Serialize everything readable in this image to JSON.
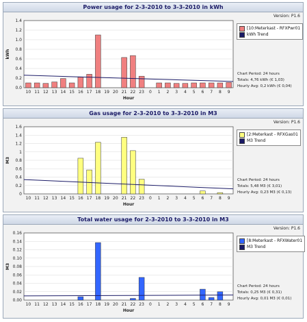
{
  "chart_data": [
    {
      "type": "bar",
      "title": "Power usage for  2-3-2010 to 3-3-2010  in kWh",
      "version": "Version: P1.6",
      "xlabel": "Hour",
      "ylabel": "kWh",
      "categories": [
        "10",
        "11",
        "12",
        "13",
        "14",
        "15",
        "16",
        "17",
        "18",
        "19",
        "20",
        "21",
        "22",
        "23",
        "0",
        "1",
        "2",
        "3",
        "4",
        "5",
        "6",
        "7",
        "8",
        "9"
      ],
      "ylim": [
        0,
        1.4
      ],
      "yticks": [
        "0.0",
        "0.2",
        "0.4",
        "0.6",
        "0.8",
        "1.0",
        "1.2",
        "1.4"
      ],
      "series": [
        {
          "name": "[10:Meterkast - RFXPwr01",
          "color": "#f08080",
          "values": [
            0.1,
            0.1,
            0.09,
            0.12,
            0.19,
            0.1,
            0.22,
            0.28,
            1.1,
            0,
            0,
            0.63,
            0.67,
            0.24,
            0,
            0.1,
            0.1,
            0.09,
            0.09,
            0.1,
            0.1,
            0.1,
            0.1,
            0.11
          ]
        },
        {
          "name": "kWh Trend",
          "color": "#1a1a66",
          "type": "line",
          "trend": [
            0.26,
            0.13
          ]
        }
      ],
      "info": [
        "Chart Period: 24 hours",
        "Totals: 4,76 kWh (€ 1,03)",
        "Hourly Avg: 0,2 kWh (€ 0,04)"
      ],
      "grid": true,
      "legend_position": "right"
    },
    {
      "type": "bar",
      "title": "Gas usage for  2-3-2010 to 3-3-2010  in M3",
      "version": "Version: P1.6",
      "xlabel": "Hour",
      "ylabel": "M3",
      "categories": [
        "10",
        "11",
        "12",
        "13",
        "14",
        "15",
        "16",
        "17",
        "18",
        "19",
        "20",
        "21",
        "22",
        "23",
        "0",
        "1",
        "2",
        "3",
        "4",
        "5",
        "6",
        "7",
        "8",
        "9"
      ],
      "ylim": [
        0,
        1.6
      ],
      "yticks": [
        "0",
        "0.2",
        "0.4",
        "0.6",
        "0.8",
        "1",
        "1.2",
        "1.4",
        "1.6"
      ],
      "series": [
        {
          "name": "[2:Meterkast - RFXGas01",
          "color": "#ffff80",
          "values": [
            0,
            0,
            0,
            0,
            0,
            0,
            0.85,
            0.57,
            1.23,
            0,
            0,
            1.35,
            1.03,
            0.35,
            0,
            0,
            0,
            0,
            0,
            0,
            0.07,
            0,
            0.03,
            0
          ]
        },
        {
          "name": "M3 Trend",
          "color": "#1a1a66",
          "type": "line",
          "trend": [
            0.34,
            0.12
          ]
        }
      ],
      "info": [
        "Chart Period: 24 hours",
        "Totals: 5,48 M3 (€ 3,01)",
        "Hourly Avg: 0,23 M3 (€ 0,13)"
      ],
      "grid": true,
      "legend_position": "right"
    },
    {
      "type": "bar",
      "title": "Total water usage for  2-3-2010 to 3-3-2010  in M3",
      "version": "Version: P1.6",
      "xlabel": "Hour",
      "ylabel": "M3",
      "categories": [
        "10",
        "11",
        "12",
        "13",
        "14",
        "15",
        "16",
        "17",
        "18",
        "19",
        "20",
        "21",
        "22",
        "23",
        "0",
        "1",
        "2",
        "3",
        "4",
        "5",
        "6",
        "7",
        "8",
        "9"
      ],
      "ylim": [
        0,
        0.16
      ],
      "yticks": [
        "0.00",
        "0.02",
        "0.04",
        "0.06",
        "0.08",
        "0.10",
        "0.12",
        "0.14",
        "0.16"
      ],
      "series": [
        {
          "name": "[8:Meterkast - RFXWater01",
          "color": "#3366ff",
          "values": [
            0,
            0,
            0,
            0,
            0,
            0,
            0.008,
            0,
            0.137,
            0,
            0,
            0,
            0.004,
            0.054,
            0,
            0,
            0,
            0,
            0,
            0,
            0.026,
            0.006,
            0.02,
            0
          ]
        },
        {
          "name": "M3 Trend",
          "color": "#1a1a66",
          "type": "line",
          "trend": [
            0.01,
            0.012
          ]
        }
      ],
      "info": [
        "Chart Period: 24 hours",
        "Totals: 0,25 M3 (€ 0,31)",
        "Hourly Avg: 0,01 M3 (€ 0,01)"
      ],
      "grid": true,
      "legend_position": "right"
    }
  ]
}
